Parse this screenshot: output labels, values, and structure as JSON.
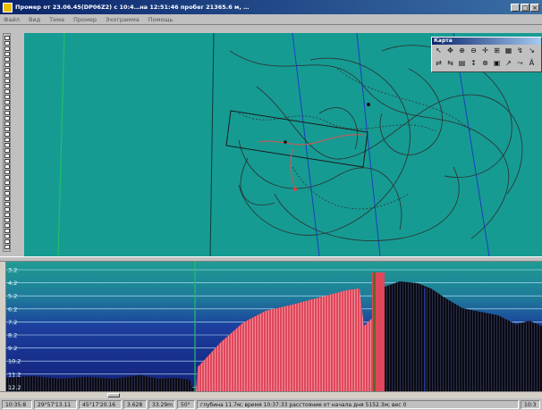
{
  "window": {
    "title": "Промер от 23.06.45(DP06Z2) с 10:4…на 12:51:46 пробег 21365.6 м, …",
    "controls": [
      "_",
      "□",
      "×"
    ]
  },
  "menu": {
    "items": [
      "Файл",
      "Вид",
      "Тема",
      "Промер",
      "Эхограмма",
      "Помощь"
    ]
  },
  "palette": {
    "title": "Карта",
    "row1": [
      "↖",
      "✥",
      "⊕",
      "⊖",
      "✛",
      "⊞",
      "▦",
      "↯",
      "↘"
    ],
    "row2": [
      "⇄",
      "⇆",
      "▤",
      "↕",
      "⊗",
      "▣",
      "↗",
      "⤳",
      "Ä"
    ]
  },
  "profile": {
    "depth_labels": [
      "3.2",
      "4.2",
      "5.2",
      "6.2",
      "7.2",
      "8.2",
      "9.2",
      "10.2",
      "11.2",
      "12.2"
    ]
  },
  "status": {
    "time": "10:35:8",
    "lat": "29°57'13.11",
    "lon": "45°17'20.16",
    "val1": "3.628",
    "val2": "33.29m",
    "val3": "50°",
    "message": "глубина 11.7м; время 10:37:33 расстояние от начала дня 5152.3м; вес 0",
    "right": "10:3"
  },
  "colors": {
    "map_bg": "#169b93",
    "profile_bg": "#1a2a8a",
    "bottom_red": "#e0475a",
    "bottom_dark": "#0a0a14"
  }
}
